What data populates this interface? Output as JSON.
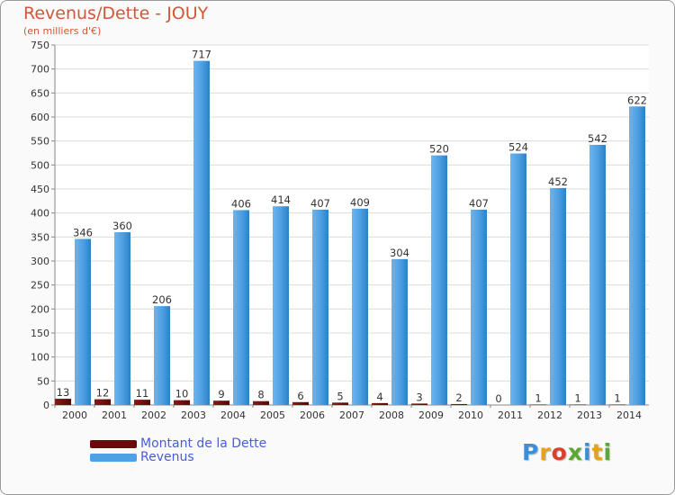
{
  "title": "Revenus/Dette - JOUY",
  "subtitle": "(en milliers d'€)",
  "logo_text": "Proxiti",
  "colors": {
    "dette": "#6b0a0a",
    "revenus": "#4ea1e4",
    "revenus_dark": "#2c7cc1",
    "title": "#d0583a",
    "legend_text": "#4a5cd8"
  },
  "legend": {
    "dette_label": "Montant de la Dette",
    "revenus_label": "Revenus"
  },
  "chart_data": {
    "type": "bar",
    "title": "Revenus/Dette - JOUY",
    "ylabel": "(en milliers d'€)",
    "xlabel": "",
    "ylim": [
      0,
      750
    ],
    "yticks": [
      0,
      50,
      100,
      150,
      200,
      250,
      300,
      350,
      400,
      450,
      500,
      550,
      600,
      650,
      700,
      750
    ],
    "grid": true,
    "categories": [
      "2000",
      "2001",
      "2002",
      "2003",
      "2004",
      "2005",
      "2006",
      "2007",
      "2008",
      "2009",
      "2010",
      "2011",
      "2012",
      "2013",
      "2014"
    ],
    "series": [
      {
        "name": "Montant de la Dette",
        "values": [
          13,
          12,
          11,
          10,
          9,
          8,
          6,
          5,
          4,
          3,
          2,
          0,
          1,
          1,
          1
        ]
      },
      {
        "name": "Revenus",
        "values": [
          346,
          360,
          206,
          717,
          406,
          414,
          407,
          409,
          304,
          520,
          407,
          524,
          452,
          542,
          622
        ]
      }
    ]
  }
}
